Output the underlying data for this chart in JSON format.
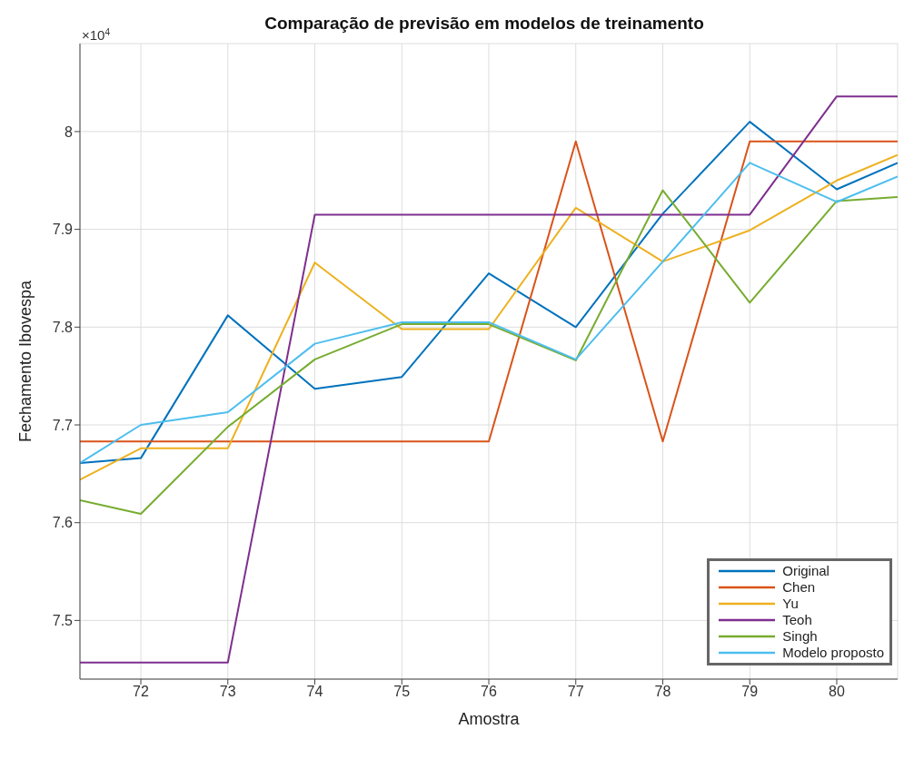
{
  "chart_data": {
    "type": "line",
    "title": "Comparação de previsão em modelos de treinamento",
    "xlabel": "Amostra",
    "ylabel": "Fechamento Ibovespa",
    "annotations": [
      "×10$^{4}$"
    ],
    "x": [
      71.3,
      72,
      73,
      74,
      75,
      76,
      77,
      78,
      79,
      80,
      80.7
    ],
    "series": [
      {
        "name": "Original",
        "color": "#0072bd",
        "values": [
          7.661,
          7.666,
          7.812,
          7.737,
          7.749,
          7.855,
          7.8,
          7.916,
          8.01,
          7.941,
          7.968
        ]
      },
      {
        "name": "Chen",
        "color": "#d95319",
        "values": [
          7.683,
          7.683,
          7.683,
          7.683,
          7.683,
          7.683,
          7.99,
          7.683,
          7.99,
          7.99,
          7.99
        ]
      },
      {
        "name": "Yu",
        "color": "#edb120",
        "values": [
          7.644,
          7.676,
          7.676,
          7.866,
          7.798,
          7.798,
          7.922,
          7.867,
          7.899,
          7.95,
          7.976
        ]
      },
      {
        "name": "Teoh",
        "color": "#7e2f8e",
        "values": [
          7.457,
          7.457,
          7.457,
          7.915,
          7.915,
          7.915,
          7.915,
          7.915,
          7.915,
          8.036,
          8.036
        ]
      },
      {
        "name": "Singh",
        "color": "#77ac30",
        "values": [
          7.623,
          7.609,
          7.698,
          7.767,
          7.803,
          7.803,
          7.766,
          7.94,
          7.825,
          7.929,
          7.933
        ]
      },
      {
        "name": "Modelo proposto",
        "color": "#4dbeee",
        "values": [
          7.661,
          7.7,
          7.713,
          7.783,
          7.805,
          7.805,
          7.767,
          7.867,
          7.968,
          7.928,
          7.954
        ]
      }
    ],
    "xlim": [
      71.3,
      80.7
    ],
    "xticks": [
      72,
      73,
      74,
      75,
      76,
      77,
      78,
      79,
      80
    ],
    "ylim": [
      7.44,
      8.09
    ],
    "yticks": [
      7.5,
      7.6,
      7.7,
      7.8,
      7.9,
      8
    ],
    "grid": true,
    "legend": "bottom right",
    "marker": "none",
    "line_style": "solid"
  }
}
